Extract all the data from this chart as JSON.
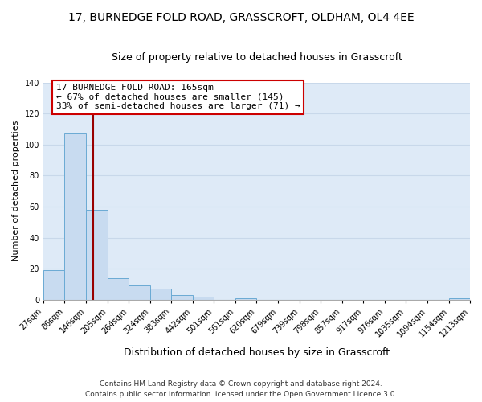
{
  "title": "17, BURNEDGE FOLD ROAD, GRASSCROFT, OLDHAM, OL4 4EE",
  "subtitle": "Size of property relative to detached houses in Grasscroft",
  "xlabel": "Distribution of detached houses by size in Grasscroft",
  "ylabel": "Number of detached properties",
  "bin_edges": [
    27,
    86,
    146,
    205,
    264,
    324,
    383,
    442,
    501,
    561,
    620,
    679,
    739,
    798,
    857,
    917,
    976,
    1035,
    1094,
    1154,
    1213
  ],
  "bin_labels": [
    "27sqm",
    "86sqm",
    "146sqm",
    "205sqm",
    "264sqm",
    "324sqm",
    "383sqm",
    "442sqm",
    "501sqm",
    "561sqm",
    "620sqm",
    "679sqm",
    "739sqm",
    "798sqm",
    "857sqm",
    "917sqm",
    "976sqm",
    "1035sqm",
    "1094sqm",
    "1154sqm",
    "1213sqm"
  ],
  "bar_heights": [
    19,
    107,
    58,
    14,
    9,
    7,
    3,
    2,
    0,
    1,
    0,
    0,
    0,
    0,
    0,
    0,
    0,
    0,
    0,
    1
  ],
  "bar_color": "#c8dbf0",
  "bar_edgecolor": "#6aaad4",
  "background_color": "#deeaf7",
  "grid_color": "#c8d8ea",
  "vline_x": 165,
  "vline_color": "#990000",
  "annotation_line1": "17 BURNEDGE FOLD ROAD: 165sqm",
  "annotation_line2": "← 67% of detached houses are smaller (145)",
  "annotation_line3": "33% of semi-detached houses are larger (71) →",
  "annotation_box_edgecolor": "#cc0000",
  "ylim": [
    0,
    140
  ],
  "yticks": [
    0,
    20,
    40,
    60,
    80,
    100,
    120,
    140
  ],
  "footer_line1": "Contains HM Land Registry data © Crown copyright and database right 2024.",
  "footer_line2": "Contains public sector information licensed under the Open Government Licence 3.0.",
  "title_fontsize": 10,
  "subtitle_fontsize": 9,
  "xlabel_fontsize": 9,
  "ylabel_fontsize": 8,
  "tick_fontsize": 7,
  "annotation_fontsize": 8
}
